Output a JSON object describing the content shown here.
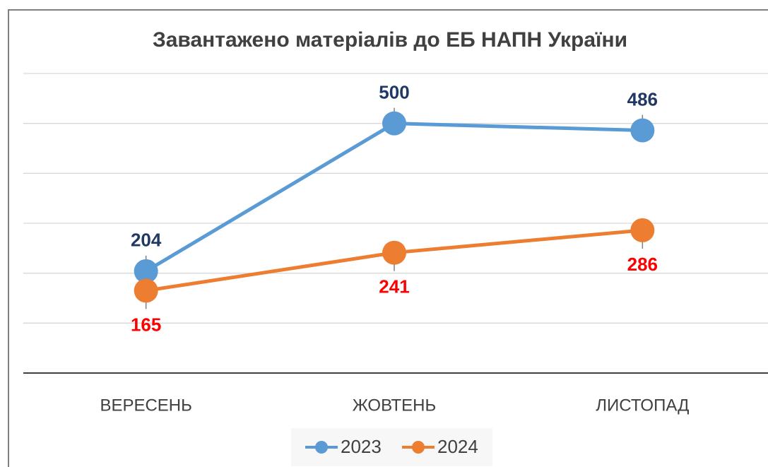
{
  "chart_data": {
    "type": "line",
    "title": "Завантажено матеріалів до ЕБ НАПН України",
    "categories": [
      "ВЕРЕСЕНЬ",
      "ЖОВТЕНЬ",
      "ЛИСТОПАД"
    ],
    "series": [
      {
        "name": "2023",
        "color": "#5b9bd5",
        "label_color": "#1f3864",
        "values": [
          204,
          500,
          486
        ]
      },
      {
        "name": "2024",
        "color": "#ed7d31",
        "label_color": "#ff0000",
        "values": [
          165,
          241,
          286
        ]
      }
    ],
    "ylim": [
      0,
      600
    ],
    "yticks": [
      0,
      100,
      200,
      300,
      400,
      500,
      600
    ],
    "grid": true,
    "legend": "bottom"
  }
}
